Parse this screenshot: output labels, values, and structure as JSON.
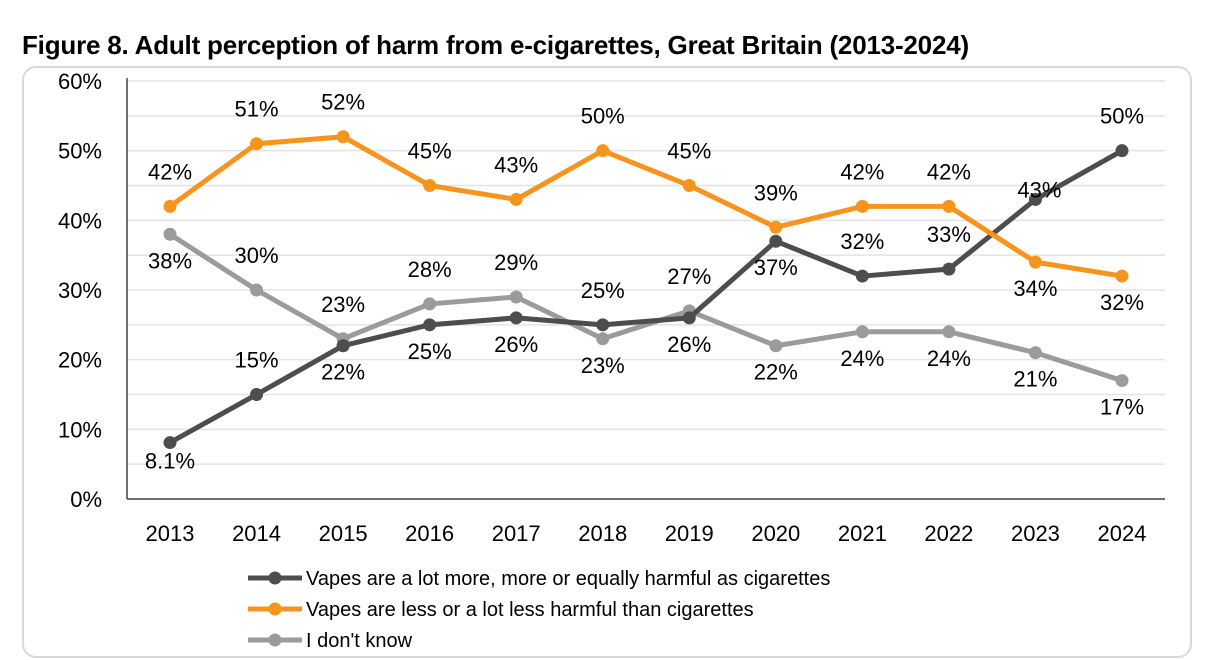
{
  "chart_data": {
    "type": "line",
    "title": "Figure 8. Adult perception of harm from e-cigarettes, Great Britain (2013-2024)",
    "xlabel": "",
    "ylabel": "",
    "categories": [
      "2013",
      "2014",
      "2015",
      "2016",
      "2017",
      "2018",
      "2019",
      "2020",
      "2021",
      "2022",
      "2023",
      "2024"
    ],
    "ylim": [
      0,
      60
    ],
    "yticks": [
      "0%",
      "10%",
      "20%",
      "30%",
      "40%",
      "50%",
      "60%"
    ],
    "grid": true,
    "legend": "bottom",
    "series": [
      {
        "name": "Vapes are a lot more, more or equally harmful as cigarettes",
        "color": "#4d4d4d",
        "values": [
          8.1,
          15,
          22,
          25,
          26,
          25,
          26,
          37,
          32,
          33,
          43,
          50
        ],
        "labels": [
          "8.1%",
          "15%",
          "22%",
          "25%",
          "26%",
          "25%",
          "26%",
          "37%",
          "32%",
          "33%",
          "43%",
          "50%"
        ]
      },
      {
        "name": "Vapes are less or a lot less harmful than cigarettes",
        "color": "#f7941d",
        "values": [
          42,
          51,
          52,
          45,
          43,
          50,
          45,
          39,
          42,
          42,
          34,
          32
        ],
        "labels": [
          "42%",
          "51%",
          "52%",
          "45%",
          "43%",
          "50%",
          "45%",
          "39%",
          "42%",
          "42%",
          "34%",
          "32%"
        ]
      },
      {
        "name": "I don't know",
        "color": "#9b9b9b",
        "values": [
          38,
          30,
          23,
          28,
          29,
          23,
          27,
          22,
          24,
          24,
          21,
          17
        ],
        "labels": [
          "38%",
          "30%",
          "23%",
          "28%",
          "29%",
          "23%",
          "27%",
          "22%",
          "24%",
          "24%",
          "21%",
          "17%"
        ]
      }
    ]
  }
}
